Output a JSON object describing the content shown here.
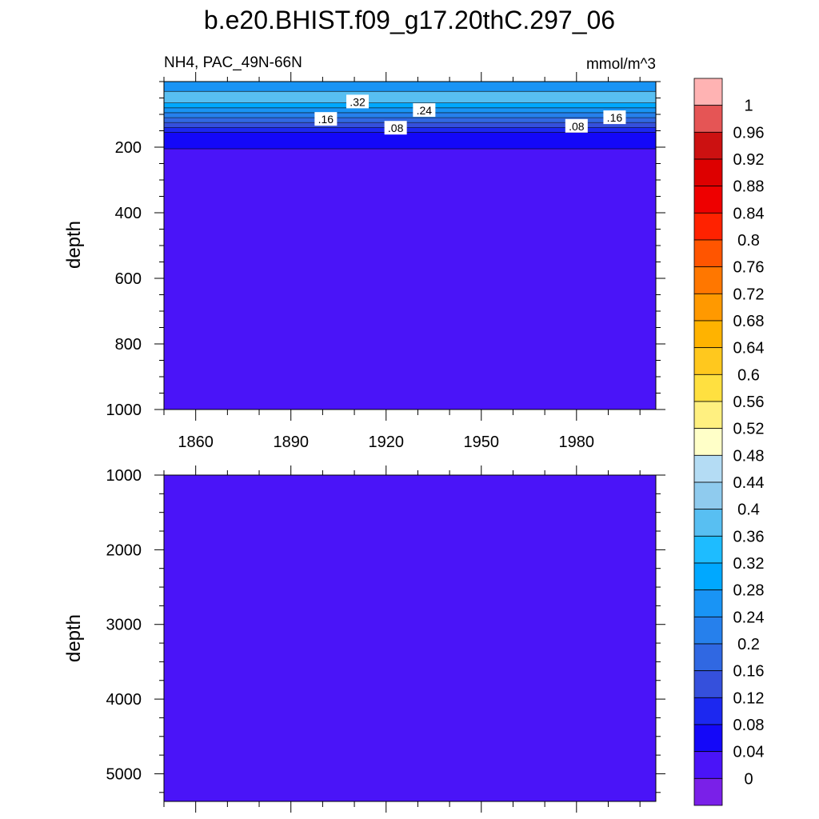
{
  "title": "b.e20.BHIST.f09_g17.20thC.297_06",
  "chart_data": [
    {
      "type": "heatmap",
      "panel": "upper",
      "left_label": "NH4, PAC_49N-66N",
      "right_label": "mmol/m^3",
      "ylabel": "depth",
      "xlabel": "",
      "x_range": [
        1850,
        2005
      ],
      "x_ticks": [
        1860,
        1890,
        1920,
        1950,
        1980
      ],
      "x_tick_labels": [
        "1860",
        "1890",
        "1920",
        "1950",
        "1980"
      ],
      "y_range": [
        0,
        1000
      ],
      "y_reversed": true,
      "y_ticks": [
        200,
        400,
        600,
        800,
        1000
      ],
      "y_tick_labels": [
        "200",
        "400",
        "600",
        "800",
        "1000"
      ],
      "layers": [
        {
          "depth_top": 0,
          "depth_bottom": 30,
          "value": 0.24
        },
        {
          "depth_top": 30,
          "depth_bottom": 65,
          "value": 0.36
        },
        {
          "depth_top": 65,
          "depth_bottom": 80,
          "value": 0.3
        },
        {
          "depth_top": 80,
          "depth_bottom": 95,
          "value": 0.26
        },
        {
          "depth_top": 95,
          "depth_bottom": 110,
          "value": 0.22
        },
        {
          "depth_top": 110,
          "depth_bottom": 125,
          "value": 0.18
        },
        {
          "depth_top": 125,
          "depth_bottom": 140,
          "value": 0.14
        },
        {
          "depth_top": 140,
          "depth_bottom": 155,
          "value": 0.1
        },
        {
          "depth_top": 155,
          "depth_bottom": 205,
          "value": 0.06
        },
        {
          "depth_top": 205,
          "depth_bottom": 1000,
          "value": 0.02
        }
      ],
      "contour_labels": [
        {
          "text": ".32",
          "x": 1911,
          "depth": 62
        },
        {
          "text": ".24",
          "x": 1932,
          "depth": 88
        },
        {
          "text": ".16",
          "x": 1901,
          "depth": 115
        },
        {
          "text": ".08",
          "x": 1923,
          "depth": 142
        },
        {
          "text": ".08",
          "x": 1980,
          "depth": 136
        },
        {
          "text": ".16",
          "x": 1992,
          "depth": 110
        }
      ]
    },
    {
      "type": "heatmap",
      "panel": "lower",
      "ylabel": "depth",
      "xlabel": "",
      "x_range": [
        1850,
        2005
      ],
      "x_ticks": [
        1860,
        1890,
        1920,
        1950,
        1980
      ],
      "y_range": [
        1000,
        5370
      ],
      "y_reversed": true,
      "y_ticks": [
        1000,
        2000,
        3000,
        4000,
        5000
      ],
      "y_tick_labels": [
        "1000",
        "2000",
        "3000",
        "4000",
        "5000"
      ],
      "layers": [
        {
          "depth_top": 1000,
          "depth_bottom": 5370,
          "value": 0.02
        }
      ]
    }
  ],
  "colorbar": {
    "labels": [
      "1",
      "0.96",
      "0.92",
      "0.88",
      "0.84",
      "0.8",
      "0.76",
      "0.72",
      "0.68",
      "0.64",
      "0.6",
      "0.56",
      "0.52",
      "0.48",
      "0.44",
      "0.4",
      "0.36",
      "0.32",
      "0.28",
      "0.24",
      "0.2",
      "0.16",
      "0.12",
      "0.08",
      "0.04",
      "0"
    ],
    "colors_top_to_bottom": [
      "#ffb3b3",
      "#e55555",
      "#cc1111",
      "#dd0000",
      "#ee0000",
      "#ff2200",
      "#ff5500",
      "#ff7700",
      "#ff9900",
      "#ffb300",
      "#ffc81e",
      "#ffe040",
      "#fff080",
      "#ffffc8",
      "#b4dcf4",
      "#8fcbee",
      "#58bff2",
      "#1ebcff",
      "#00a8ff",
      "#1994f5",
      "#2680ec",
      "#3068e2",
      "#3550dc",
      "#1c28f0",
      "#1408f8",
      "#4a14f8",
      "#7a20e8"
    ]
  }
}
